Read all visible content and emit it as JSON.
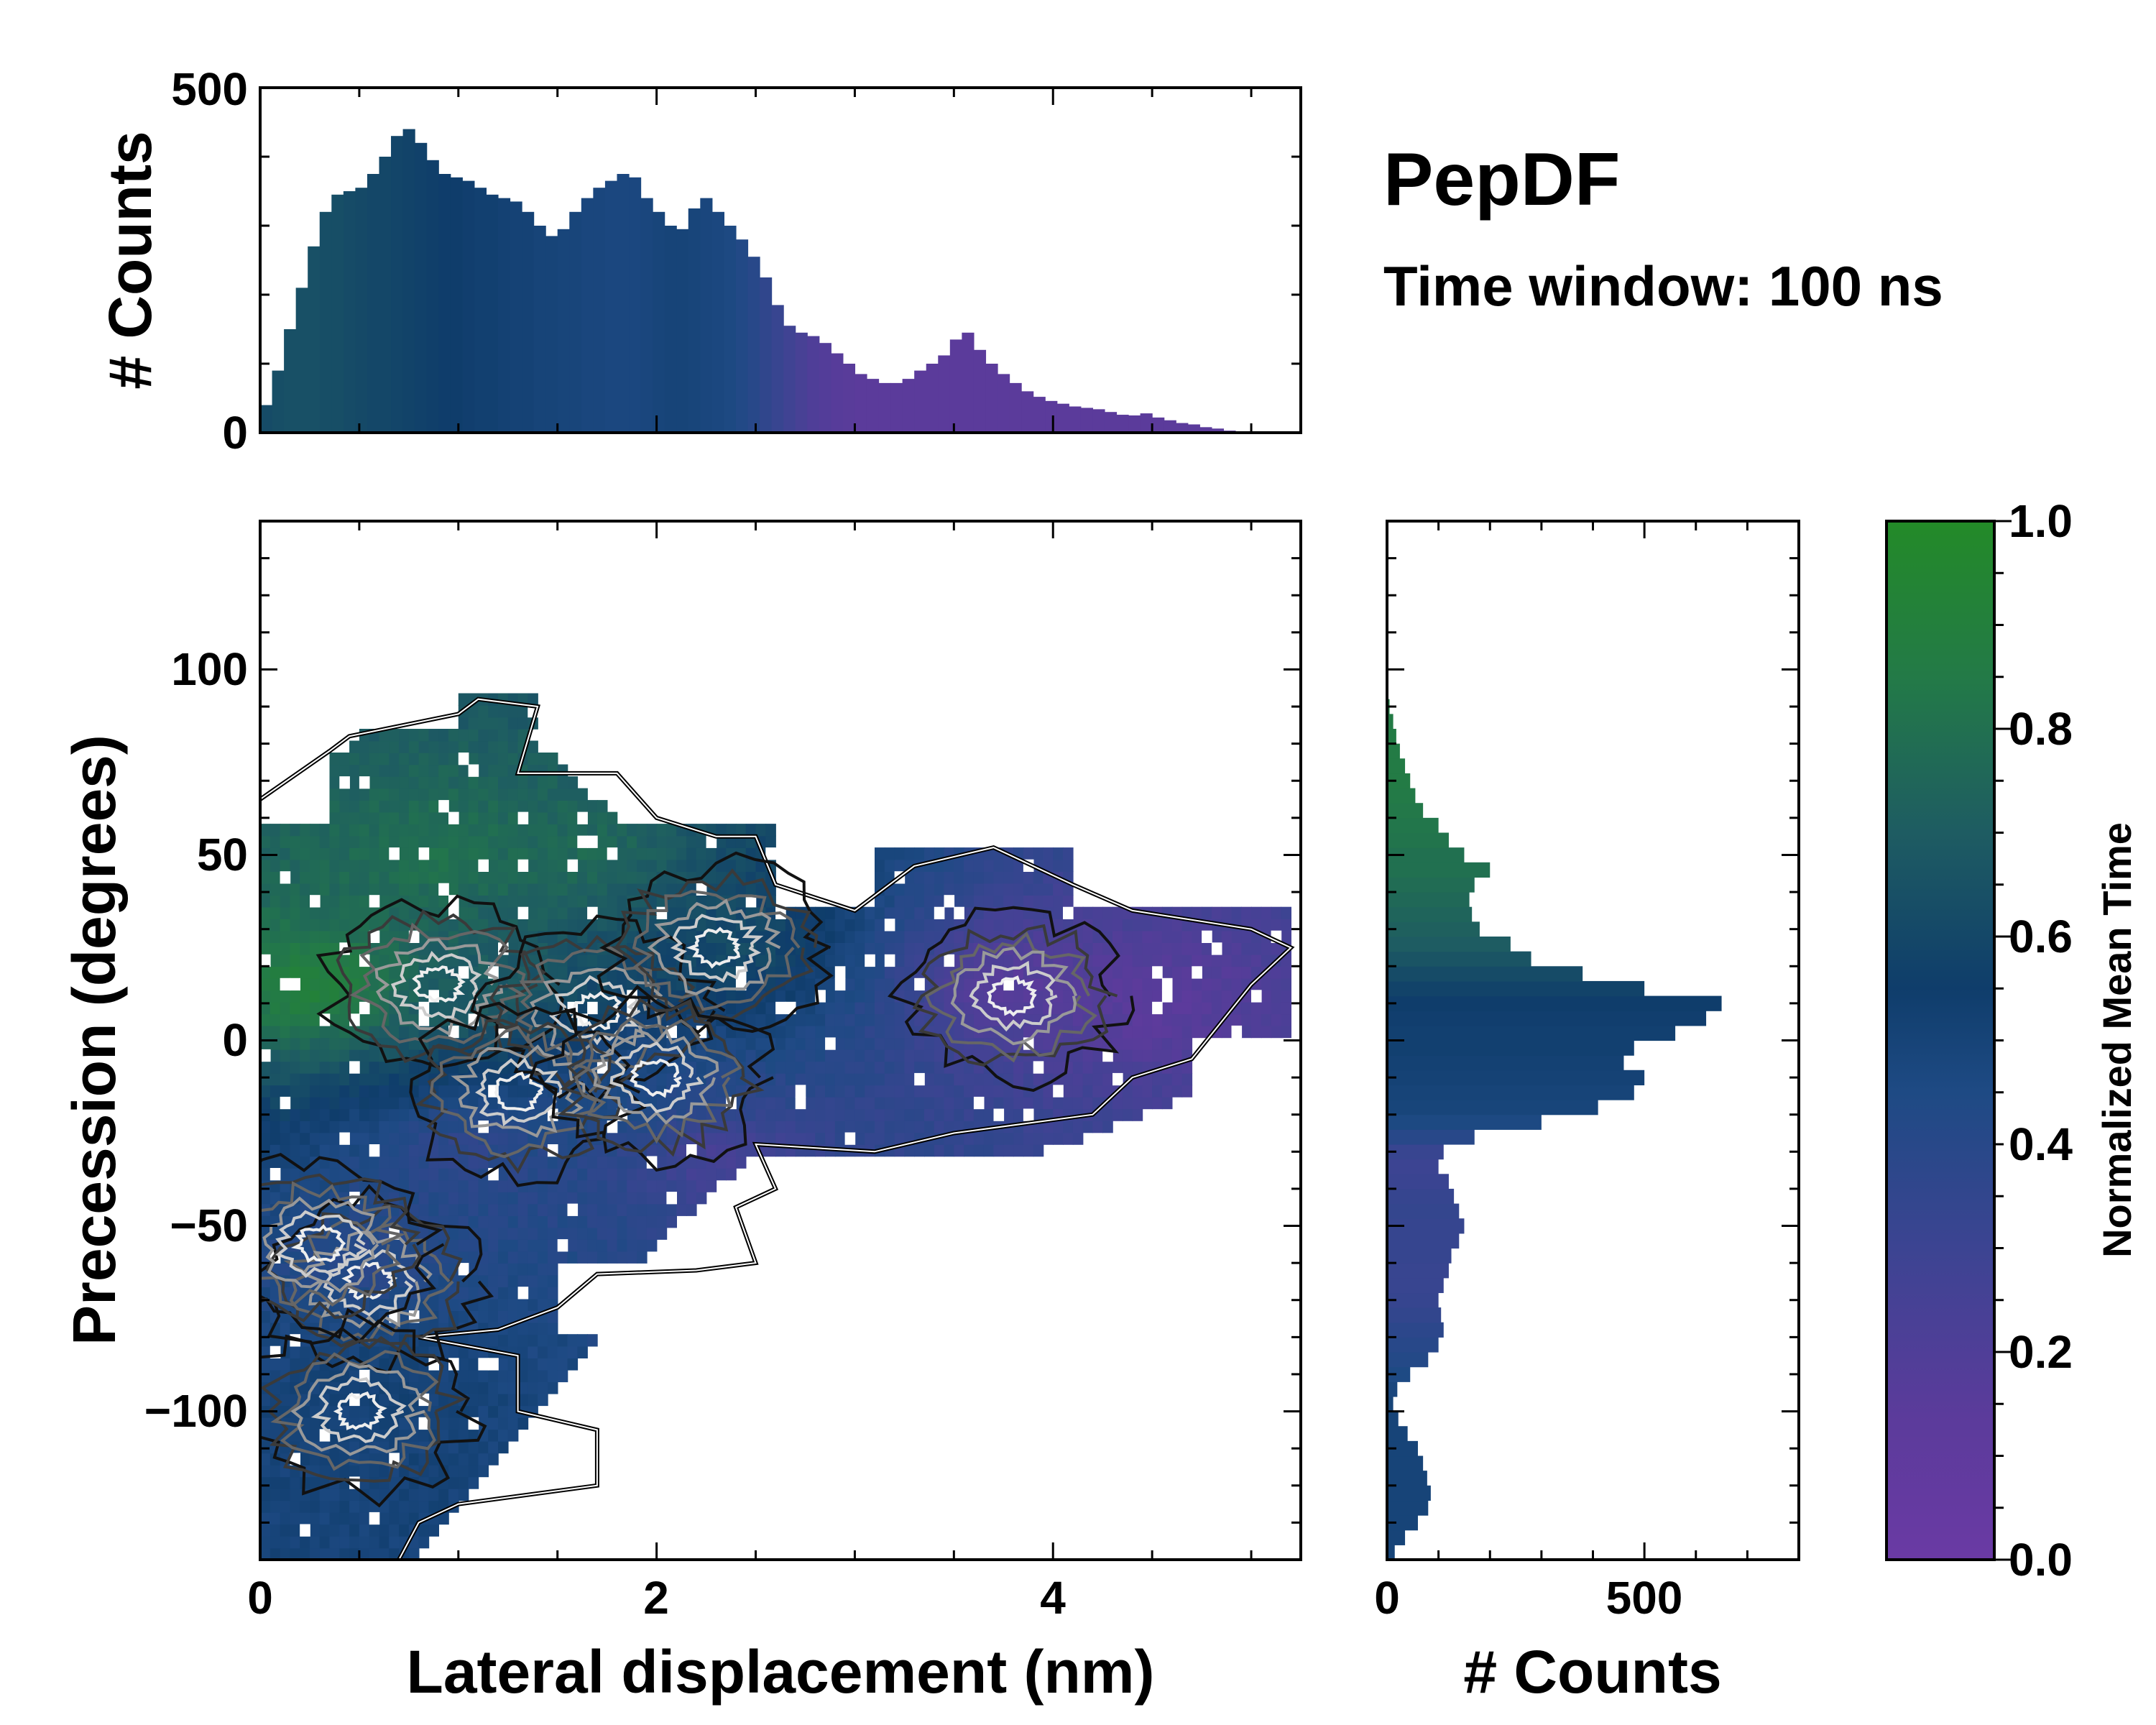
{
  "chart_data": [
    {
      "type": "bar",
      "name": "top-marginal-histogram",
      "title": "",
      "xlabel": "",
      "ylabel": "# Counts",
      "xlim": [
        0,
        5.25
      ],
      "ylim": [
        0,
        500
      ],
      "yticks": [
        0,
        500
      ],
      "bin_centers": [
        0.03,
        0.09,
        0.15,
        0.21,
        0.27,
        0.33,
        0.39,
        0.45,
        0.51,
        0.57,
        0.63,
        0.69,
        0.75,
        0.81,
        0.87,
        0.93,
        0.99,
        1.05,
        1.11,
        1.17,
        1.23,
        1.29,
        1.35,
        1.41,
        1.47,
        1.53,
        1.59,
        1.65,
        1.71,
        1.77,
        1.83,
        1.89,
        1.95,
        2.01,
        2.07,
        2.13,
        2.19,
        2.25,
        2.31,
        2.37,
        2.43,
        2.49,
        2.55,
        2.61,
        2.67,
        2.73,
        2.79,
        2.85,
        2.91,
        2.97,
        3.03,
        3.09,
        3.15,
        3.21,
        3.27,
        3.33,
        3.39,
        3.45,
        3.51,
        3.57,
        3.63,
        3.69,
        3.75,
        3.81,
        3.87,
        3.93,
        3.99,
        4.05,
        4.11,
        4.17,
        4.23,
        4.29,
        4.35,
        4.41,
        4.47,
        4.53,
        4.59,
        4.65,
        4.71,
        4.77,
        4.83,
        4.89,
        4.95,
        5.01,
        5.07,
        5.13,
        5.19
      ],
      "counts": [
        40,
        90,
        150,
        210,
        270,
        320,
        345,
        350,
        355,
        375,
        400,
        430,
        440,
        420,
        395,
        375,
        370,
        365,
        355,
        345,
        340,
        335,
        320,
        300,
        285,
        295,
        320,
        340,
        355,
        365,
        375,
        370,
        340,
        320,
        300,
        295,
        325,
        340,
        320,
        300,
        280,
        255,
        225,
        185,
        155,
        145,
        140,
        130,
        115,
        100,
        85,
        78,
        72,
        72,
        78,
        90,
        100,
        112,
        135,
        145,
        120,
        100,
        85,
        72,
        60,
        52,
        46,
        42,
        38,
        36,
        34,
        30,
        26,
        25,
        28,
        22,
        18,
        14,
        12,
        8,
        6,
        3,
        0,
        0,
        0,
        0,
        0
      ],
      "mean_time": [
        0.62,
        0.63,
        0.64,
        0.64,
        0.64,
        0.63,
        0.63,
        0.62,
        0.61,
        0.6,
        0.6,
        0.59,
        0.58,
        0.57,
        0.56,
        0.55,
        0.55,
        0.54,
        0.53,
        0.53,
        0.52,
        0.51,
        0.51,
        0.5,
        0.5,
        0.49,
        0.49,
        0.48,
        0.48,
        0.47,
        0.47,
        0.47,
        0.48,
        0.49,
        0.5,
        0.5,
        0.49,
        0.48,
        0.47,
        0.46,
        0.43,
        0.4,
        0.36,
        0.32,
        0.28,
        0.24,
        0.2,
        0.18,
        0.16,
        0.15,
        0.14,
        0.14,
        0.14,
        0.14,
        0.14,
        0.14,
        0.14,
        0.14,
        0.14,
        0.14,
        0.14,
        0.14,
        0.14,
        0.14,
        0.14,
        0.14,
        0.14,
        0.14,
        0.14,
        0.14,
        0.14,
        0.14,
        0.14,
        0.14,
        0.14,
        0.14,
        0.14,
        0.14,
        0.14,
        0.14,
        0.14,
        0.14,
        0.14,
        0.14,
        0.14,
        0.14,
        0.14
      ]
    },
    {
      "type": "heatmap",
      "name": "main-2d-density",
      "title": "",
      "xlabel": "Lateral displacement (nm)",
      "ylabel": "Precession (degrees)",
      "xlim": [
        0,
        5.25
      ],
      "ylim": [
        -140,
        140
      ],
      "xticks": [
        0,
        2,
        4
      ],
      "yticks": [
        -100,
        -50,
        0,
        50,
        100
      ],
      "value": "Normalized Mean Time",
      "region_centers_x": [
        0.3,
        0.9,
        1.6,
        1.1,
        2.4,
        3.8,
        4.5,
        2.0,
        1.0,
        0.5,
        0.6,
        0.7,
        2.3
      ],
      "region_centers_y": [
        15,
        50,
        50,
        15,
        25,
        15,
        10,
        -15,
        -30,
        -60,
        -90,
        -120,
        -30
      ],
      "region_times": [
        0.95,
        0.82,
        0.78,
        0.7,
        0.62,
        0.14,
        0.13,
        0.45,
        0.35,
        0.4,
        0.52,
        0.5,
        0.2
      ],
      "density_peaks_x": [
        0.9,
        1.7,
        2.3,
        1.3,
        2.0,
        0.55,
        0.3,
        3.8,
        0.5
      ],
      "density_peaks_y": [
        15,
        8,
        25,
        -14,
        -10,
        -65,
        -55,
        12,
        -100
      ]
    },
    {
      "type": "bar",
      "orientation": "horizontal",
      "name": "right-marginal-histogram",
      "title": "",
      "xlabel": "# Counts",
      "ylabel": "",
      "xlim": [
        0,
        800
      ],
      "ylim": [
        -140,
        140
      ],
      "xticks": [
        0,
        500
      ],
      "bin_centers": [
        -138,
        -134,
        -130,
        -126,
        -122,
        -118,
        -114,
        -110,
        -106,
        -102,
        -98,
        -94,
        -90,
        -86,
        -82,
        -78,
        -74,
        -70,
        -66,
        -62,
        -58,
        -54,
        -50,
        -46,
        -42,
        -38,
        -34,
        -30,
        -26,
        -22,
        -18,
        -14,
        -10,
        -6,
        -2,
        2,
        6,
        10,
        14,
        18,
        22,
        26,
        30,
        34,
        38,
        42,
        46,
        50,
        54,
        58,
        62,
        66,
        70,
        74,
        78,
        82,
        86,
        90
      ],
      "counts": [
        15,
        35,
        60,
        80,
        85,
        78,
        70,
        60,
        40,
        22,
        12,
        20,
        45,
        80,
        100,
        110,
        105,
        100,
        110,
        120,
        125,
        140,
        150,
        140,
        130,
        120,
        100,
        110,
        170,
        300,
        410,
        480,
        500,
        460,
        480,
        560,
        620,
        650,
        500,
        380,
        280,
        240,
        180,
        165,
        160,
        170,
        200,
        150,
        120,
        100,
        70,
        55,
        45,
        35,
        25,
        18,
        12,
        5
      ],
      "mean_time": [
        0.5,
        0.5,
        0.5,
        0.5,
        0.5,
        0.5,
        0.5,
        0.5,
        0.5,
        0.5,
        0.5,
        0.48,
        0.45,
        0.42,
        0.4,
        0.38,
        0.35,
        0.33,
        0.32,
        0.32,
        0.33,
        0.33,
        0.33,
        0.34,
        0.33,
        0.31,
        0.3,
        0.32,
        0.4,
        0.46,
        0.49,
        0.5,
        0.51,
        0.52,
        0.53,
        0.53,
        0.54,
        0.55,
        0.58,
        0.62,
        0.66,
        0.7,
        0.72,
        0.74,
        0.76,
        0.78,
        0.8,
        0.8,
        0.82,
        0.83,
        0.84,
        0.85,
        0.86,
        0.86,
        0.86,
        0.86,
        0.86,
        0.86
      ]
    },
    {
      "type": "colorbar",
      "name": "colorbar",
      "label": "Normalized Mean Time",
      "range": [
        0.0,
        1.0
      ],
      "ticks": [
        0.0,
        0.2,
        0.4,
        0.6,
        0.8,
        1.0
      ],
      "tick_labels": [
        "0.0",
        "0.2",
        "0.4",
        "0.6",
        "0.8",
        "1.0"
      ],
      "color_stops": [
        "#6a3aa4",
        "#5b3b9b",
        "#3c4492",
        "#1e4a84",
        "#0f3d6b",
        "#1e5c62",
        "#237a47",
        "#238a28"
      ]
    }
  ],
  "annotation": {
    "title": "PepDF",
    "subtitle": "Time window: 100 ns"
  },
  "labels": {
    "top_ylabel": "# Counts",
    "top_ytick_low": "0",
    "top_ytick_high": "500",
    "main_xlabel": "Lateral displacement (nm)",
    "main_ylabel": "Precession (degrees)",
    "main_xtick_0": "0",
    "main_xtick_2": "2",
    "main_xtick_4": "4",
    "main_ytick_p100": "100",
    "main_ytick_p50": "50",
    "main_ytick_0": "0",
    "main_ytick_m50": "−50",
    "main_ytick_m100": "−100",
    "right_xlabel": "# Counts",
    "right_xtick_0": "0",
    "right_xtick_500": "500",
    "cbar_label": "Normalized Mean Time",
    "cbar_tick_0": "0.0",
    "cbar_tick_1": "0.2",
    "cbar_tick_2": "0.4",
    "cbar_tick_3": "0.6",
    "cbar_tick_4": "0.8",
    "cbar_tick_5": "1.0"
  }
}
